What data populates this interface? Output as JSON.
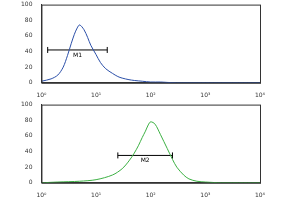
{
  "chart_data": [
    {
      "type": "line",
      "log": "x",
      "color": "#2b4fa8",
      "x": [
        1,
        1.5,
        2,
        2.5,
        3,
        3.5,
        4,
        4.5,
        5,
        6,
        7,
        8,
        10,
        12,
        15,
        20,
        25,
        30,
        40,
        50,
        70,
        100,
        150,
        200,
        300,
        500,
        1000,
        2000,
        5000,
        10000
      ],
      "values": [
        2,
        5,
        10,
        20,
        35,
        50,
        62,
        70,
        74,
        68,
        58,
        48,
        36,
        26,
        18,
        12,
        8,
        6,
        4,
        3,
        2,
        1,
        1,
        0.5,
        0,
        0,
        0,
        0,
        0,
        0
      ],
      "xlim": [
        1,
        10000
      ],
      "xticks": [
        {
          "value": 1,
          "label": "10⁰"
        },
        {
          "value": 10,
          "label": "10¹"
        },
        {
          "value": 100,
          "label": "10²"
        },
        {
          "value": 1000,
          "label": "10³"
        },
        {
          "value": 10000,
          "label": "10⁴"
        }
      ],
      "ylim": [
        0,
        100
      ],
      "yticks": [
        0,
        20,
        40,
        60,
        80,
        100
      ],
      "annotations": [
        {
          "text": "M1",
          "x": [
            1.3,
            16
          ],
          "y": 42
        }
      ]
    },
    {
      "type": "line",
      "log": "x",
      "color": "#3cb043",
      "x": [
        1,
        2,
        5,
        10,
        20,
        30,
        40,
        50,
        60,
        70,
        80,
        90,
        100,
        120,
        150,
        200,
        250,
        300,
        400,
        500,
        700,
        1000,
        2000,
        5000,
        10000
      ],
      "values": [
        0,
        1,
        2,
        4,
        10,
        18,
        28,
        38,
        48,
        58,
        66,
        74,
        78,
        75,
        62,
        44,
        30,
        20,
        10,
        5,
        2,
        1,
        0,
        0,
        0
      ],
      "xlim": [
        1,
        10000
      ],
      "xticks": [
        {
          "value": 1,
          "label": "10⁰"
        },
        {
          "value": 10,
          "label": "10¹"
        },
        {
          "value": 100,
          "label": "10²"
        },
        {
          "value": 1000,
          "label": "10³"
        },
        {
          "value": 10000,
          "label": "10⁴"
        }
      ],
      "ylim": [
        0,
        100
      ],
      "yticks": [
        0,
        20,
        40,
        60,
        80,
        100
      ],
      "annotations": [
        {
          "text": "M2",
          "x": [
            25,
            250
          ],
          "y": 35
        }
      ]
    }
  ]
}
